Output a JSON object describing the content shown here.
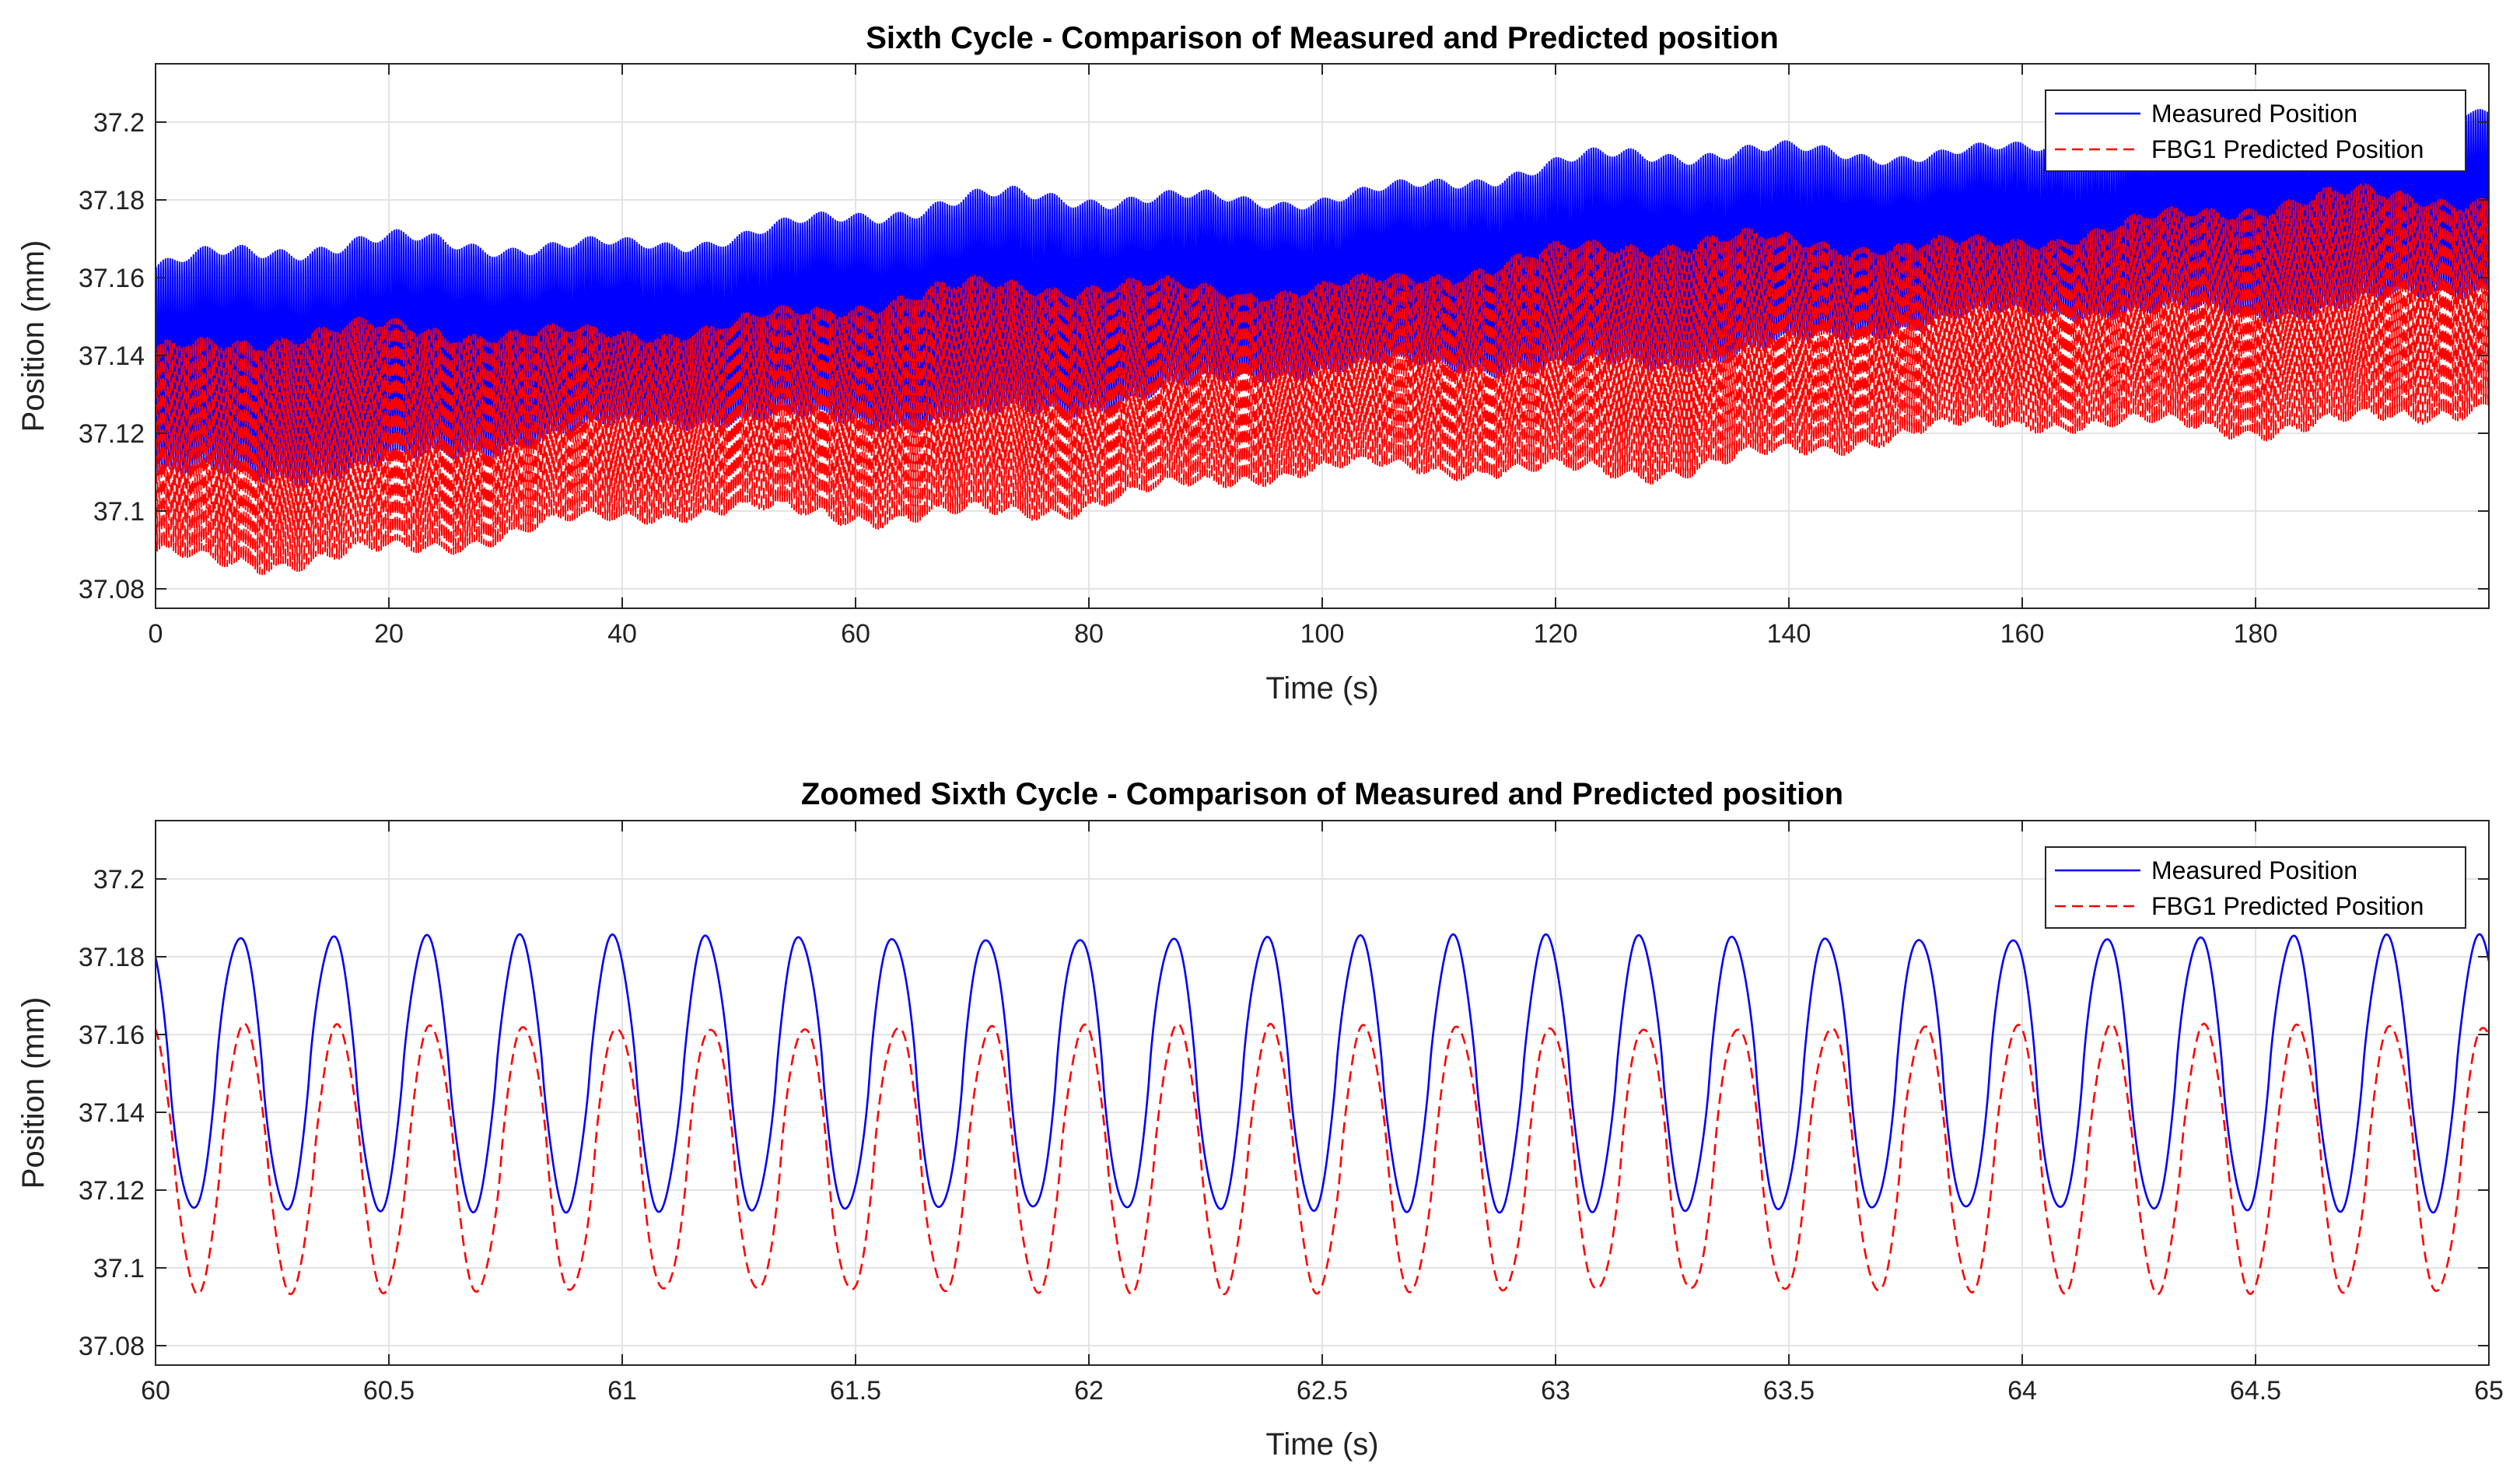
{
  "chart_data": [
    {
      "type": "line",
      "title": "Sixth Cycle - Comparison of Measured and Predicted position",
      "xlabel": "Time (s)",
      "ylabel": "Position (mm)",
      "xlim": [
        0,
        200
      ],
      "ylim": [
        37.075,
        37.215
      ],
      "xticks": [
        0,
        20,
        40,
        60,
        80,
        100,
        120,
        140,
        160,
        180
      ],
      "xtick_labels": [
        "0",
        "20",
        "40",
        "60",
        "80",
        "100",
        "120",
        "140",
        "160",
        "180"
      ],
      "yticks": [
        37.08,
        37.1,
        37.12,
        37.14,
        37.16,
        37.18,
        37.2
      ],
      "ytick_labels": [
        "37.08",
        "37.1",
        "37.12",
        "37.14",
        "37.16",
        "37.18",
        "37.2"
      ],
      "grid": true,
      "legend": "top-right",
      "signal": {
        "cycle_period_s": 0.2,
        "sample_rate_hz": 100
      },
      "series": [
        {
          "name": "Measured Position",
          "color": "#0000ff",
          "style": "solid",
          "envelope": {
            "t": [
              0,
              200
            ],
            "top": [
              37.172,
              37.212
            ],
            "bottom": [
              37.1,
              37.15
            ]
          }
        },
        {
          "name": "FBG1 Predicted Position",
          "color": "#ff0000",
          "style": "dashed",
          "envelope": {
            "t": [
              0,
              200
            ],
            "top": [
              37.15,
              37.19
            ],
            "bottom": [
              37.078,
              37.118
            ]
          }
        }
      ]
    },
    {
      "type": "line",
      "title": "Zoomed Sixth Cycle - Comparison of Measured and Predicted position",
      "xlabel": "Time (s)",
      "ylabel": "Position (mm)",
      "xlim": [
        60,
        65
      ],
      "ylim": [
        37.075,
        37.215
      ],
      "xticks": [
        60,
        60.5,
        61,
        61.5,
        62,
        62.5,
        63,
        63.5,
        64,
        64.5,
        65
      ],
      "xtick_labels": [
        "60",
        "60.5",
        "61",
        "61.5",
        "62",
        "62.5",
        "63",
        "63.5",
        "64",
        "64.5",
        "65"
      ],
      "yticks": [
        37.08,
        37.1,
        37.12,
        37.14,
        37.16,
        37.18,
        37.2
      ],
      "ytick_labels": [
        "37.08",
        "37.1",
        "37.12",
        "37.14",
        "37.16",
        "37.18",
        "37.2"
      ],
      "grid": true,
      "legend": "top-right",
      "signal": {
        "cycle_period_s": 0.2,
        "sample_rate_hz": 100
      },
      "series": [
        {
          "name": "Measured Position",
          "color": "#0000ff",
          "style": "solid",
          "peak_times": [
            60.18,
            60.38,
            60.58,
            60.78,
            60.98,
            61.18,
            61.38,
            61.58,
            61.78,
            61.98,
            62.18,
            62.38,
            62.58,
            62.78,
            62.98,
            63.18,
            63.38,
            63.58,
            63.78,
            63.98,
            64.18,
            64.38,
            64.58,
            64.78,
            64.98
          ],
          "peak_value": 37.185,
          "trough_value": 37.115
        },
        {
          "name": "FBG1 Predicted Position",
          "color": "#ff0000",
          "style": "dashed",
          "peak_times": [
            60.19,
            60.39,
            60.59,
            60.79,
            60.99,
            61.19,
            61.39,
            61.59,
            61.79,
            61.99,
            62.19,
            62.39,
            62.59,
            62.79,
            62.99,
            63.19,
            63.39,
            63.59,
            63.79,
            63.99,
            64.19,
            64.39,
            64.59,
            64.79,
            64.99
          ],
          "peak_value": 37.162,
          "trough_value": 37.094
        }
      ]
    }
  ]
}
